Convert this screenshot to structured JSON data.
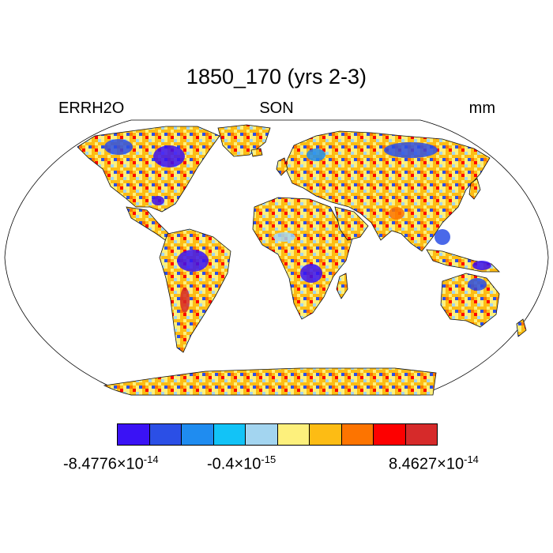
{
  "title": "1850_170 (yrs 2-3)",
  "variable": "ERRH2O",
  "season": "SON",
  "units": "mm",
  "colorbar": {
    "colors": [
      "#3a12f5",
      "#2b4fe6",
      "#1f8cf0",
      "#12c3f7",
      "#a3d5f0",
      "#fdf07c",
      "#fdbc14",
      "#fd7400",
      "#fd0000",
      "#d62a2a"
    ],
    "labels": [
      {
        "mantissa": "-8.4776",
        "times": "×",
        "base": "10",
        "exponent": "-14"
      },
      {
        "mantissa": "-0.4",
        "times": "×",
        "base": "10",
        "exponent": "-15"
      },
      {
        "mantissa": "8.4627",
        "times": "×",
        "base": "10",
        "exponent": "-14"
      }
    ]
  },
  "map": {
    "projection": "robinson",
    "dominant_color": "#fdbc14",
    "land_pattern": "noisy"
  }
}
